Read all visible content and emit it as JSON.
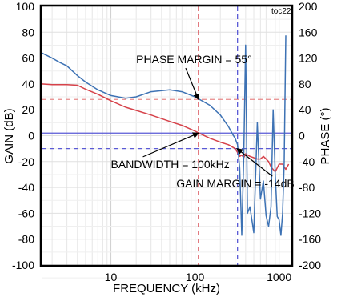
{
  "chart_data": {
    "type": "line",
    "tag": "toc22",
    "xlabel": "FREQUENCY (kHz)",
    "ylabel_left": "GAIN (dB)",
    "ylabel_right": "PHASE (°)",
    "x_scale": "log",
    "xlim": [
      1.5,
      1400
    ],
    "ylim_left": [
      -100,
      100
    ],
    "ylim_right": [
      -200,
      200
    ],
    "x_ticks": [
      10,
      100,
      1000
    ],
    "x_tick_labels": [
      "10",
      "100",
      "1000"
    ],
    "left_ticks": [
      100,
      80,
      60,
      40,
      20,
      0,
      -20,
      -40,
      -60,
      -80,
      -100
    ],
    "right_ticks": [
      200,
      160,
      120,
      80,
      40,
      0,
      -40,
      -80,
      -120,
      -160,
      -200
    ],
    "grid": true,
    "series": [
      {
        "axis": "left",
        "color": "#d6424a",
        "x": [
          1.5,
          2,
          3,
          4,
          5,
          7,
          10,
          15,
          20,
          30,
          50,
          70,
          100,
          120,
          150,
          200,
          250,
          300,
          320,
          340,
          360,
          380,
          400,
          450,
          500,
          550,
          600,
          650,
          700,
          750,
          800,
          900,
          1000,
          1100,
          1200,
          1300
        ],
        "y": [
          40,
          39.5,
          39.5,
          39,
          36,
          32,
          27,
          22,
          19.5,
          16,
          11,
          8,
          3.5,
          1,
          -2,
          -5,
          -7,
          -10,
          -13,
          -16,
          -15,
          -17,
          -14,
          -16,
          -17,
          -18,
          -18,
          -16,
          -18,
          -20,
          -24,
          -28,
          -22,
          -22,
          -26,
          -22
        ]
      },
      {
        "axis": "right",
        "color": "#3d72b4",
        "x": [
          1.5,
          2,
          2.5,
          3,
          4,
          5,
          7,
          10,
          15,
          20,
          30,
          50,
          70,
          100,
          150,
          200,
          250,
          280,
          300,
          320,
          340,
          360,
          380,
          400,
          420,
          450,
          500,
          550,
          600,
          650,
          700,
          750,
          800,
          850,
          900,
          950,
          1000,
          1050,
          1100,
          1150,
          1200
        ],
        "y": [
          128,
          120,
          113,
          108,
          93,
          83,
          71,
          62,
          58,
          60,
          68,
          71,
          68,
          60,
          47,
          32,
          14,
          2,
          -4,
          -14,
          -50,
          -154,
          -30,
          140,
          -120,
          -110,
          -150,
          20,
          -98,
          -70,
          -124,
          -140,
          -110,
          40,
          -60,
          -125,
          -130,
          -154,
          -120,
          -40,
          155
        ]
      }
    ],
    "reference_lines": [
      {
        "orientation": "horizontal",
        "axis": "left",
        "value": 28,
        "color": "#e88a8a",
        "style": "dashed"
      },
      {
        "orientation": "horizontal",
        "axis": "left",
        "value": -10,
        "color": "#5a5ad6",
        "style": "dashed"
      },
      {
        "orientation": "horizontal",
        "axis": "left",
        "value": 2,
        "color": "#5a5ad6",
        "style": "solid"
      },
      {
        "orientation": "vertical",
        "value": 110,
        "color": "#d6424a",
        "style": "dashed"
      },
      {
        "orientation": "vertical",
        "value": 320,
        "color": "#5a5ad6",
        "style": "dashed"
      }
    ],
    "annotations": [
      {
        "text": "PHASE MARGIN = 55°",
        "axis": "left",
        "x": 20,
        "y": 56,
        "arrow_to": [
          110,
          28
        ]
      },
      {
        "text": "BANDWIDTH = 100kHz",
        "axis": "left",
        "x": 10,
        "y": -25,
        "arrow_to": [
          110,
          2
        ]
      },
      {
        "text": "GAIN MARGIN = -14dB",
        "axis": "left",
        "x": 60,
        "y": -40,
        "arrow_to": [
          315,
          -10
        ]
      }
    ]
  }
}
